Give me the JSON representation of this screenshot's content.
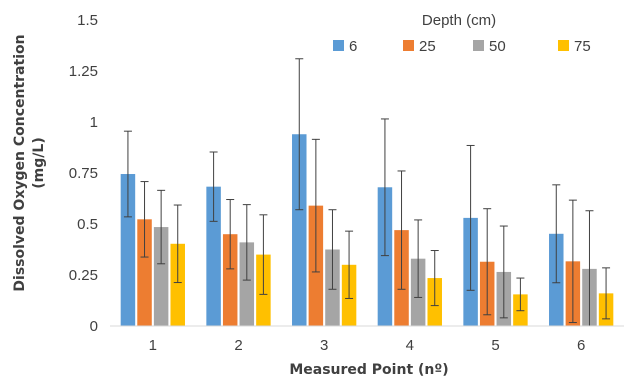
{
  "chart_data": {
    "type": "bar",
    "title": "",
    "xlabel": "Measured Point (nº)",
    "ylabel_line1": "Dissolved Oxygen Concentration",
    "ylabel_line2": "(mg/L)",
    "ylim": [
      0,
      1.5
    ],
    "yticks": [
      "0",
      "0.25",
      "0.5",
      "0.75",
      "1",
      "1.25",
      "1.5"
    ],
    "ytick_values": [
      0,
      0.25,
      0.5,
      0.75,
      1,
      1.25,
      1.5
    ],
    "grid": false,
    "legend": {
      "title": "Depth (cm)",
      "placement": "top-right"
    },
    "categories": [
      "1",
      "2",
      "3",
      "4",
      "5",
      "6"
    ],
    "series": [
      {
        "name": "6",
        "color": "#5B9BD5",
        "values": [
          0.745,
          0.683,
          0.94,
          0.68,
          0.53,
          0.452
        ],
        "errors": [
          0.21,
          0.17,
          0.37,
          0.335,
          0.355,
          0.24
        ]
      },
      {
        "name": "25",
        "color": "#ED7D31",
        "values": [
          0.523,
          0.45,
          0.59,
          0.47,
          0.315,
          0.317
        ],
        "errors": [
          0.185,
          0.17,
          0.325,
          0.29,
          0.26,
          0.3
        ]
      },
      {
        "name": "50",
        "color": "#A5A5A5",
        "values": [
          0.485,
          0.41,
          0.375,
          0.33,
          0.265,
          0.28
        ],
        "errors": [
          0.18,
          0.185,
          0.195,
          0.19,
          0.225,
          0.285
        ]
      },
      {
        "name": "75",
        "color": "#FFC000",
        "values": [
          0.403,
          0.35,
          0.3,
          0.235,
          0.155,
          0.16
        ],
        "errors": [
          0.19,
          0.195,
          0.165,
          0.135,
          0.08,
          0.125
        ]
      }
    ]
  }
}
